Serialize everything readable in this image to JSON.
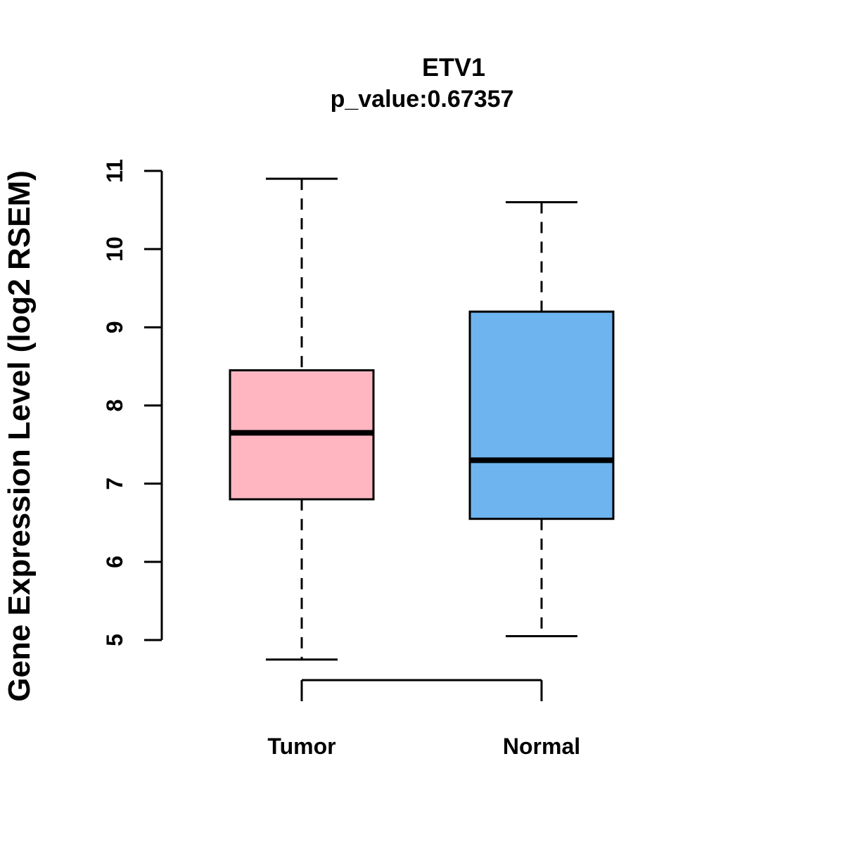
{
  "chart_data": {
    "type": "boxplot",
    "title": "ETV1",
    "subtitle": "p_value:0.67357",
    "ylabel": "Gene Expression Level (log2 RSEM)",
    "xlabel": "",
    "ylim": [
      5,
      11
    ],
    "yticks": [
      5,
      6,
      7,
      8,
      9,
      10,
      11
    ],
    "grid": false,
    "legend": "none",
    "axis_color": "#000000",
    "groups": [
      {
        "label": "Tumor",
        "color": "#FFB6C1",
        "whisker_low": 4.75,
        "q1": 6.8,
        "median": 7.65,
        "q3": 8.45,
        "whisker_high": 10.9
      },
      {
        "label": "Normal",
        "color": "#6EB4EF",
        "whisker_low": 5.05,
        "q1": 6.55,
        "median": 7.3,
        "q3": 9.2,
        "whisker_high": 10.6
      }
    ]
  }
}
